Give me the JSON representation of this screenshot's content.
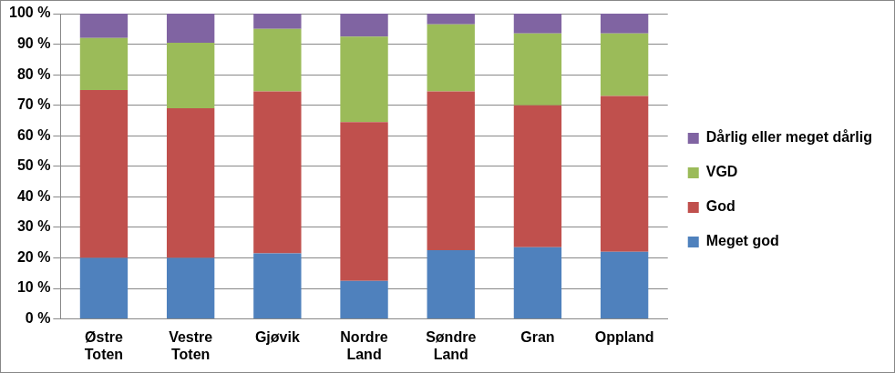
{
  "chart_data": {
    "type": "bar",
    "stacked": true,
    "grid": true,
    "legend": "right",
    "categories": [
      "Østre Toten",
      "Vestre Toten",
      "Gjøvik",
      "Nordre Land",
      "Søndre Land",
      "Gran",
      "Oppland"
    ],
    "series": [
      {
        "name": "Meget god",
        "color": "#4f81bd",
        "values": [
          20,
          20,
          21.5,
          12.5,
          22.5,
          23.5,
          22
        ]
      },
      {
        "name": "God",
        "color": "#c0504d",
        "values": [
          55,
          49,
          53,
          52,
          52,
          46.5,
          51
        ]
      },
      {
        "name": "VGD",
        "color": "#9bbb59",
        "values": [
          17,
          21.5,
          20.5,
          28,
          22,
          23.5,
          20.5
        ]
      },
      {
        "name": "Dårlig eller meget dårlig",
        "color": "#8064a2",
        "values": [
          8,
          9.5,
          5,
          7.5,
          3.5,
          6.5,
          6.5
        ]
      }
    ],
    "ylim": [
      0,
      100
    ],
    "yticks": [
      {
        "value": 0,
        "label": "0 %"
      },
      {
        "value": 10,
        "label": "10 %"
      },
      {
        "value": 20,
        "label": "20 %"
      },
      {
        "value": 30,
        "label": "30 %"
      },
      {
        "value": 40,
        "label": "40 %"
      },
      {
        "value": 50,
        "label": "50 %"
      },
      {
        "value": 60,
        "label": "60 %"
      },
      {
        "value": 70,
        "label": "70 %"
      },
      {
        "value": 80,
        "label": "80 %"
      },
      {
        "value": 90,
        "label": "90 %"
      },
      {
        "value": 100,
        "label": "100 %"
      }
    ]
  }
}
